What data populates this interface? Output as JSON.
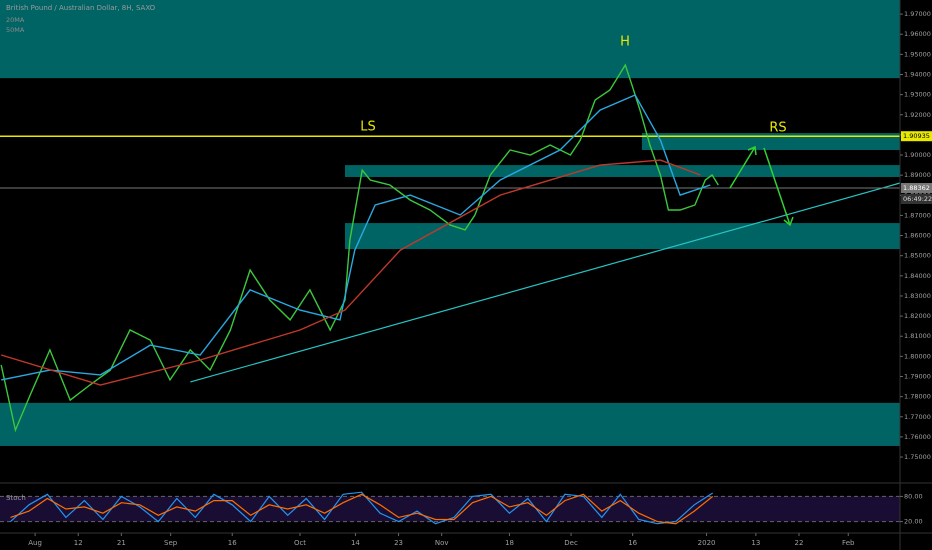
{
  "chart_data": [
    {
      "type": "line",
      "title": "British Pound / Australian Dollar, 8H, SAXO",
      "xlim": [
        -5.7,
        140.4
      ],
      "ylim": [
        1.7376,
        1.977
      ],
      "xticks": [
        {
          "value": 0,
          "label": "Aug"
        },
        {
          "value": 7,
          "label": "12"
        },
        {
          "value": 14,
          "label": "21"
        },
        {
          "value": 22,
          "label": "Sep"
        },
        {
          "value": 32,
          "label": "16"
        },
        {
          "value": 43,
          "label": "Oct"
        },
        {
          "value": 52,
          "label": "14"
        },
        {
          "value": 59,
          "label": "23"
        },
        {
          "value": 66,
          "label": "Nov"
        },
        {
          "value": 77,
          "label": "18"
        },
        {
          "value": 87,
          "label": "Dec"
        },
        {
          "value": 97,
          "label": "16"
        },
        {
          "value": 109,
          "label": "2020"
        },
        {
          "value": 117,
          "label": "13"
        },
        {
          "value": 124,
          "label": "22"
        },
        {
          "value": 132,
          "label": "Feb"
        }
      ],
      "yticks": [
        {
          "value": 1.75,
          "label": "1.75000"
        },
        {
          "value": 1.76,
          "label": "1.76000"
        },
        {
          "value": 1.77,
          "label": "1.77000"
        },
        {
          "value": 1.78,
          "label": "1.78000"
        },
        {
          "value": 1.79,
          "label": "1.79000"
        },
        {
          "value": 1.8,
          "label": "1.80000"
        },
        {
          "value": 1.81,
          "label": "1.81000"
        },
        {
          "value": 1.82,
          "label": "1.82000"
        },
        {
          "value": 1.83,
          "label": "1.83000"
        },
        {
          "value": 1.84,
          "label": "1.84000"
        },
        {
          "value": 1.85,
          "label": "1.85000"
        },
        {
          "value": 1.86,
          "label": "1.86000"
        },
        {
          "value": 1.87,
          "label": "1.87000"
        },
        {
          "value": 1.88,
          "label": "1.88000"
        },
        {
          "value": 1.89,
          "label": "1.89000"
        },
        {
          "value": 1.9,
          "label": "1.90000"
        },
        {
          "value": 1.91,
          "label": "1.91000"
        },
        {
          "value": 1.92,
          "label": "1.92000"
        },
        {
          "value": 1.93,
          "label": "1.93000"
        },
        {
          "value": 1.94,
          "label": "1.94000"
        },
        {
          "value": 1.95,
          "label": "1.95000"
        },
        {
          "value": 1.96,
          "label": "1.96000"
        },
        {
          "value": 1.97,
          "label": "1.97000"
        }
      ],
      "zones": [
        {
          "from": 1.9382,
          "to": 1.977,
          "x_start": -5.7,
          "color": "#006464"
        },
        {
          "from": 1.9025,
          "to": 1.9109,
          "x_start": 98.5,
          "color": "#006464"
        },
        {
          "from": 1.8891,
          "to": 1.895,
          "x_start": 50.3,
          "color": "#006464"
        },
        {
          "from": 1.8533,
          "to": 1.8662,
          "x_start": 50.3,
          "color": "#006464"
        },
        {
          "from": 1.7555,
          "to": 1.7769,
          "x_start": -5.7,
          "color": "#006464"
        }
      ],
      "levels": [
        {
          "value": 1.90935,
          "label": "1.90935",
          "color": "#e8e800"
        },
        {
          "value": 1.88362,
          "label": "1.88362",
          "color": "#777777"
        }
      ],
      "countdown": "06:49:22",
      "trendline": {
        "x": [
          25.2,
          140.4
        ],
        "y": [
          1.7873,
          1.8861
        ],
        "color": "#27c4c4"
      },
      "annotations": [
        "LS",
        "H",
        "RS"
      ],
      "series": [
        {
          "color": "#3cc83c",
          "x": [
            -5.5,
            -3.2,
            -0.8,
            2.4,
            5.7,
            8.9,
            12.2,
            15.4,
            18.7,
            21.9,
            25.2,
            28.4,
            31.7,
            34.9,
            38.1,
            41.4,
            44.6,
            47.9,
            50.3,
            51.1,
            53.1,
            54.4,
            57.6,
            60.9,
            64.1,
            67.4,
            69.8,
            71.4,
            73.9,
            77.1,
            80.4,
            83.6,
            86.9,
            88.5,
            90.9,
            93.3,
            95.8,
            96.9,
            98.2,
            99.8,
            101.5,
            102.8,
            104.7,
            107.1,
            108.8,
            109.9,
            110.9
          ],
          "values": [
            1.7957,
            1.7634,
            1.7808,
            1.8032,
            1.7783,
            1.7858,
            1.7932,
            1.8131,
            1.8081,
            1.7883,
            1.8032,
            1.7932,
            1.8131,
            1.8429,
            1.828,
            1.8181,
            1.833,
            1.8131,
            1.828,
            1.8578,
            1.8925,
            1.8876,
            1.8851,
            1.8776,
            1.8727,
            1.8652,
            1.8628,
            1.8702,
            1.8901,
            1.9025,
            1.9,
            1.905,
            1.9,
            1.9074,
            1.9273,
            1.9323,
            1.9447,
            1.9347,
            1.9223,
            1.905,
            1.8901,
            1.8727,
            1.8727,
            1.8752,
            1.8876,
            1.8901,
            1.8851
          ]
        },
        {
          "name": "20MA",
          "color": "#29a9e0",
          "x": [
            -5.5,
            2.4,
            10.6,
            18.7,
            26.8,
            34.9,
            43.0,
            49.5,
            51.9,
            55.2,
            60.9,
            69.0,
            75.5,
            85.2,
            91.7,
            97.4,
            101.5,
            104.7,
            109.6
          ],
          "values": [
            1.7883,
            1.7932,
            1.7908,
            1.8056,
            1.8007,
            1.833,
            1.823,
            1.8181,
            1.8528,
            1.8752,
            1.8801,
            1.8702,
            1.8876,
            1.9025,
            1.9223,
            1.9298,
            1.9074,
            1.8801,
            1.8851
          ]
        },
        {
          "name": "50MA",
          "color": "#c0392b",
          "x": [
            -5.5,
            10.6,
            26.8,
            43.0,
            50.3,
            59.3,
            75.5,
            91.7,
            101.5,
            108.0
          ],
          "values": [
            1.8007,
            1.7858,
            1.7982,
            1.8131,
            1.823,
            1.8528,
            1.8801,
            1.895,
            1.8975,
            1.8901
          ]
        }
      ]
    },
    {
      "type": "line",
      "title": "Stoch",
      "xlim": [
        -5.7,
        140.4
      ],
      "ylim": [
        0,
        100
      ],
      "yticks": [
        {
          "value": 20,
          "label": "20.00"
        },
        {
          "value": 80,
          "label": "80.00"
        }
      ],
      "band": [
        20,
        80
      ],
      "series": [
        {
          "color": "#2196f3",
          "x": [
            -4,
            -1,
            2,
            5,
            8,
            11,
            14,
            17,
            20,
            23,
            26,
            29,
            32,
            35,
            38,
            41,
            44,
            47,
            50,
            53,
            56,
            59,
            62,
            65,
            68,
            71,
            74,
            77,
            80,
            83,
            86,
            89,
            92,
            95,
            98,
            101,
            104,
            107,
            110
          ],
          "values": [
            20,
            60,
            85,
            30,
            70,
            25,
            80,
            55,
            20,
            75,
            30,
            85,
            60,
            20,
            80,
            35,
            75,
            25,
            85,
            90,
            40,
            20,
            45,
            15,
            30,
            80,
            85,
            40,
            75,
            20,
            85,
            80,
            30,
            85,
            25,
            15,
            20,
            60,
            88
          ]
        },
        {
          "color": "#ff6d00",
          "x": [
            -4,
            -1,
            2,
            5,
            8,
            11,
            14,
            17,
            20,
            23,
            26,
            29,
            32,
            35,
            38,
            41,
            44,
            47,
            50,
            53,
            56,
            59,
            62,
            65,
            68,
            71,
            74,
            77,
            80,
            83,
            86,
            89,
            92,
            95,
            98,
            101,
            104,
            107,
            110
          ],
          "values": [
            30,
            45,
            75,
            50,
            55,
            40,
            65,
            60,
            35,
            55,
            45,
            70,
            70,
            35,
            60,
            50,
            60,
            40,
            65,
            85,
            60,
            30,
            40,
            25,
            25,
            65,
            80,
            55,
            65,
            35,
            70,
            85,
            45,
            70,
            40,
            20,
            15,
            45,
            80
          ]
        }
      ]
    }
  ]
}
